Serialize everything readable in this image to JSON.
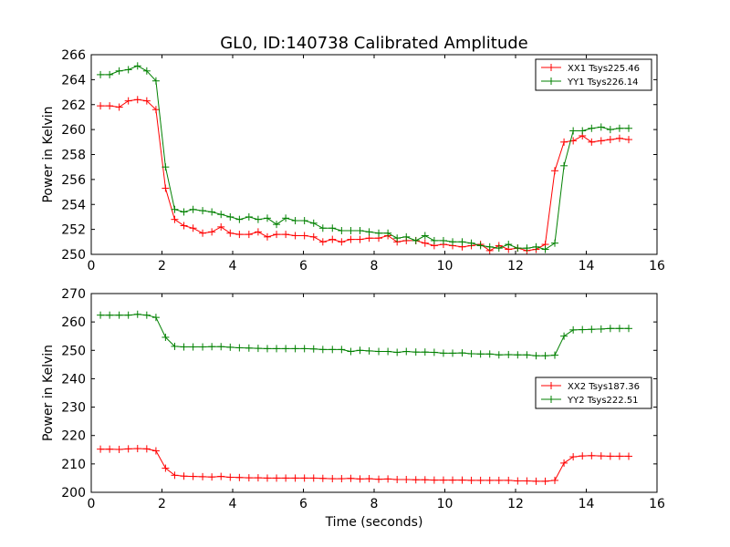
{
  "title": "GL0, ID:140738 Calibrated Amplitude",
  "chart_data": [
    {
      "type": "line",
      "ylabel": "Power in Kelvin",
      "xlabel": "",
      "xlim": [
        0,
        16
      ],
      "ylim": [
        250,
        266
      ],
      "xticks": [
        0,
        2,
        4,
        6,
        8,
        10,
        12,
        14,
        16
      ],
      "yticks": [
        250,
        252,
        254,
        256,
        258,
        260,
        262,
        264,
        266
      ],
      "legend_position": "top-right",
      "series": [
        {
          "name": "XX1 Tsys225.46",
          "color": "#ff0000",
          "x": [
            0.26,
            0.52,
            0.79,
            1.05,
            1.31,
            1.57,
            1.83,
            2.1,
            2.36,
            2.62,
            2.88,
            3.15,
            3.41,
            3.67,
            3.93,
            4.19,
            4.46,
            4.72,
            4.98,
            5.24,
            5.5,
            5.77,
            6.03,
            6.29,
            6.55,
            6.82,
            7.08,
            7.34,
            7.6,
            7.86,
            8.13,
            8.39,
            8.65,
            8.91,
            9.18,
            9.44,
            9.7,
            9.96,
            10.22,
            10.49,
            10.75,
            11.01,
            11.27,
            11.53,
            11.8,
            12.06,
            12.32,
            12.58,
            12.84,
            13.11,
            13.37,
            13.63,
            13.89,
            14.15,
            14.42,
            14.68,
            14.94,
            15.2
          ],
          "values": [
            261.9,
            261.9,
            261.8,
            262.3,
            262.4,
            262.3,
            261.6,
            255.3,
            252.8,
            252.3,
            252.1,
            251.7,
            251.8,
            252.2,
            251.7,
            251.6,
            251.6,
            251.8,
            251.4,
            251.6,
            251.6,
            251.5,
            251.5,
            251.4,
            251.0,
            251.2,
            251.0,
            251.2,
            251.2,
            251.3,
            251.3,
            251.5,
            251.0,
            251.1,
            251.1,
            250.9,
            250.7,
            250.8,
            250.7,
            250.6,
            250.7,
            250.8,
            250.3,
            250.7,
            250.4,
            250.5,
            250.3,
            250.4,
            250.8,
            256.7,
            259.0,
            259.1,
            259.5,
            259.0,
            259.1,
            259.2,
            259.3,
            259.2
          ]
        },
        {
          "name": "YY1 Tsys226.14",
          "color": "#008000",
          "x": [
            0.26,
            0.52,
            0.79,
            1.05,
            1.31,
            1.57,
            1.83,
            2.1,
            2.36,
            2.62,
            2.88,
            3.15,
            3.41,
            3.67,
            3.93,
            4.19,
            4.46,
            4.72,
            4.98,
            5.24,
            5.5,
            5.77,
            6.03,
            6.29,
            6.55,
            6.82,
            7.08,
            7.34,
            7.6,
            7.86,
            8.13,
            8.39,
            8.65,
            8.91,
            9.18,
            9.44,
            9.7,
            9.96,
            10.22,
            10.49,
            10.75,
            11.01,
            11.27,
            11.53,
            11.8,
            12.06,
            12.32,
            12.58,
            12.84,
            13.11,
            13.37,
            13.63,
            13.89,
            14.15,
            14.42,
            14.68,
            14.94,
            15.2
          ],
          "values": [
            264.4,
            264.4,
            264.7,
            264.8,
            265.1,
            264.7,
            263.9,
            257.0,
            253.6,
            253.4,
            253.6,
            253.5,
            253.4,
            253.2,
            253.0,
            252.8,
            253.0,
            252.8,
            252.9,
            252.4,
            252.9,
            252.7,
            252.7,
            252.5,
            252.1,
            252.1,
            251.9,
            251.9,
            251.9,
            251.8,
            251.7,
            251.7,
            251.3,
            251.4,
            251.1,
            251.5,
            251.1,
            251.1,
            251.0,
            251.0,
            250.9,
            250.7,
            250.6,
            250.5,
            250.8,
            250.5,
            250.5,
            250.6,
            250.4,
            250.9,
            257.1,
            259.9,
            259.9,
            260.1,
            260.2,
            260.0,
            260.1,
            260.1
          ]
        }
      ]
    },
    {
      "type": "line",
      "ylabel": "Power in Kelvin",
      "xlabel": "Time (seconds)",
      "xlim": [
        0,
        16
      ],
      "ylim": [
        200,
        270
      ],
      "xticks": [
        0,
        2,
        4,
        6,
        8,
        10,
        12,
        14,
        16
      ],
      "yticks": [
        200,
        210,
        220,
        230,
        240,
        250,
        260,
        270
      ],
      "legend_position": "center-right",
      "series": [
        {
          "name": "XX2 Tsys187.36",
          "color": "#ff0000",
          "x": [
            0.26,
            0.52,
            0.79,
            1.05,
            1.31,
            1.57,
            1.83,
            2.1,
            2.36,
            2.62,
            2.88,
            3.15,
            3.41,
            3.67,
            3.93,
            4.19,
            4.46,
            4.72,
            4.98,
            5.24,
            5.5,
            5.77,
            6.03,
            6.29,
            6.55,
            6.82,
            7.08,
            7.34,
            7.6,
            7.86,
            8.13,
            8.39,
            8.65,
            8.91,
            9.18,
            9.44,
            9.7,
            9.96,
            10.22,
            10.49,
            10.75,
            11.01,
            11.27,
            11.53,
            11.8,
            12.06,
            12.32,
            12.58,
            12.84,
            13.11,
            13.37,
            13.63,
            13.89,
            14.15,
            14.42,
            14.68,
            14.94,
            15.2
          ],
          "values": [
            215.2,
            215.2,
            215.1,
            215.3,
            215.4,
            215.3,
            214.6,
            208.5,
            206.0,
            205.7,
            205.6,
            205.5,
            205.4,
            205.6,
            205.3,
            205.2,
            205.1,
            205.1,
            205.0,
            205.0,
            205.0,
            205.0,
            205.0,
            205.0,
            204.9,
            204.8,
            204.8,
            204.9,
            204.7,
            204.8,
            204.6,
            204.7,
            204.5,
            204.5,
            204.4,
            204.4,
            204.3,
            204.3,
            204.3,
            204.3,
            204.2,
            204.2,
            204.2,
            204.2,
            204.2,
            204.0,
            204.0,
            203.9,
            203.9,
            204.2,
            210.3,
            212.5,
            212.8,
            212.9,
            212.8,
            212.7,
            212.7,
            212.7
          ]
        },
        {
          "name": "YY2 Tsys222.51",
          "color": "#008000",
          "x": [
            0.26,
            0.52,
            0.79,
            1.05,
            1.31,
            1.57,
            1.83,
            2.1,
            2.36,
            2.62,
            2.88,
            3.15,
            3.41,
            3.67,
            3.93,
            4.19,
            4.46,
            4.72,
            4.98,
            5.24,
            5.5,
            5.77,
            6.03,
            6.29,
            6.55,
            6.82,
            7.08,
            7.34,
            7.6,
            7.86,
            8.13,
            8.39,
            8.65,
            8.91,
            9.18,
            9.44,
            9.7,
            9.96,
            10.22,
            10.49,
            10.75,
            11.01,
            11.27,
            11.53,
            11.8,
            12.06,
            12.32,
            12.58,
            12.84,
            13.11,
            13.37,
            13.63,
            13.89,
            14.15,
            14.42,
            14.68,
            14.94,
            15.2
          ],
          "values": [
            262.4,
            262.4,
            262.4,
            262.4,
            262.7,
            262.4,
            261.6,
            254.6,
            251.4,
            251.2,
            251.2,
            251.2,
            251.3,
            251.3,
            251.1,
            250.9,
            250.8,
            250.7,
            250.6,
            250.6,
            250.6,
            250.6,
            250.6,
            250.5,
            250.3,
            250.3,
            250.3,
            249.6,
            250.0,
            249.8,
            249.6,
            249.6,
            249.3,
            249.6,
            249.4,
            249.4,
            249.3,
            249.0,
            249.0,
            249.1,
            248.8,
            248.7,
            248.7,
            248.4,
            248.5,
            248.4,
            248.4,
            248.1,
            248.1,
            248.3,
            255.0,
            257.2,
            257.3,
            257.4,
            257.5,
            257.7,
            257.7,
            257.7
          ]
        }
      ]
    }
  ]
}
